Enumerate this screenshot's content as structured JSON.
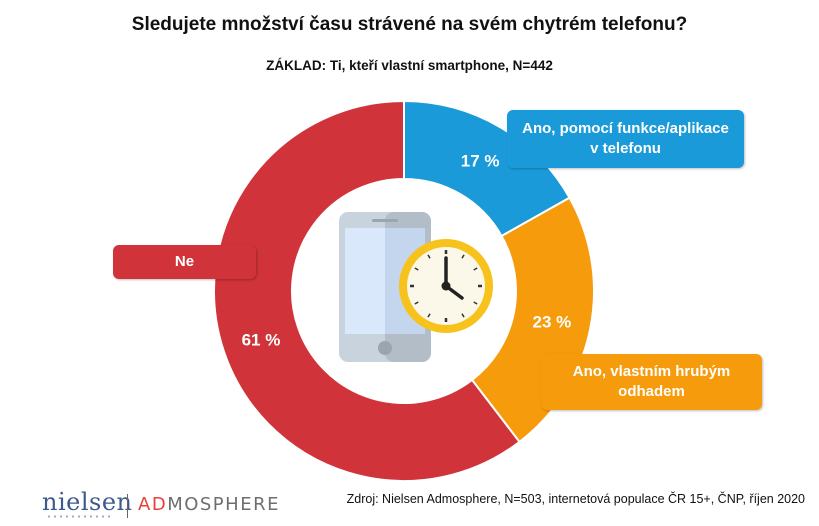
{
  "title": "Sledujete množství času strávené na svém chytrém telefonu?",
  "subtitle": "ZÁKLAD: Ti, kteří vlastní smartphone, N=442",
  "chart_data": {
    "type": "pie",
    "donut": true,
    "slices": [
      {
        "label": "Ano, pomocí funkce/aplikace v telefonu",
        "value": 17,
        "value_label": "17 %",
        "color": "#1a9ad8"
      },
      {
        "label": "Ano, vlastním hrubým odhadem",
        "value": 23,
        "value_label": "23 %",
        "color": "#f59b0c"
      },
      {
        "label": "Ne",
        "value": 61,
        "value_label": "61 %",
        "color": "#d0343a"
      }
    ]
  },
  "callouts": {
    "ne": "Ne",
    "app_line1": "Ano, pomocí funkce/aplikace",
    "app_line2": "v telefonu",
    "est_line1": "Ano, vlastním hrubým",
    "est_line2": "odhadem"
  },
  "center_icon": "smartphone-clock-icon",
  "source": "Zdroj: Nielsen Admosphere, N=503, internetová populace ČR 15+, ČNP, říjen 2020",
  "logos": {
    "nielsen": "nielsen",
    "admosphere_ad": "AD",
    "admosphere_rest": "MOSPHERE"
  }
}
